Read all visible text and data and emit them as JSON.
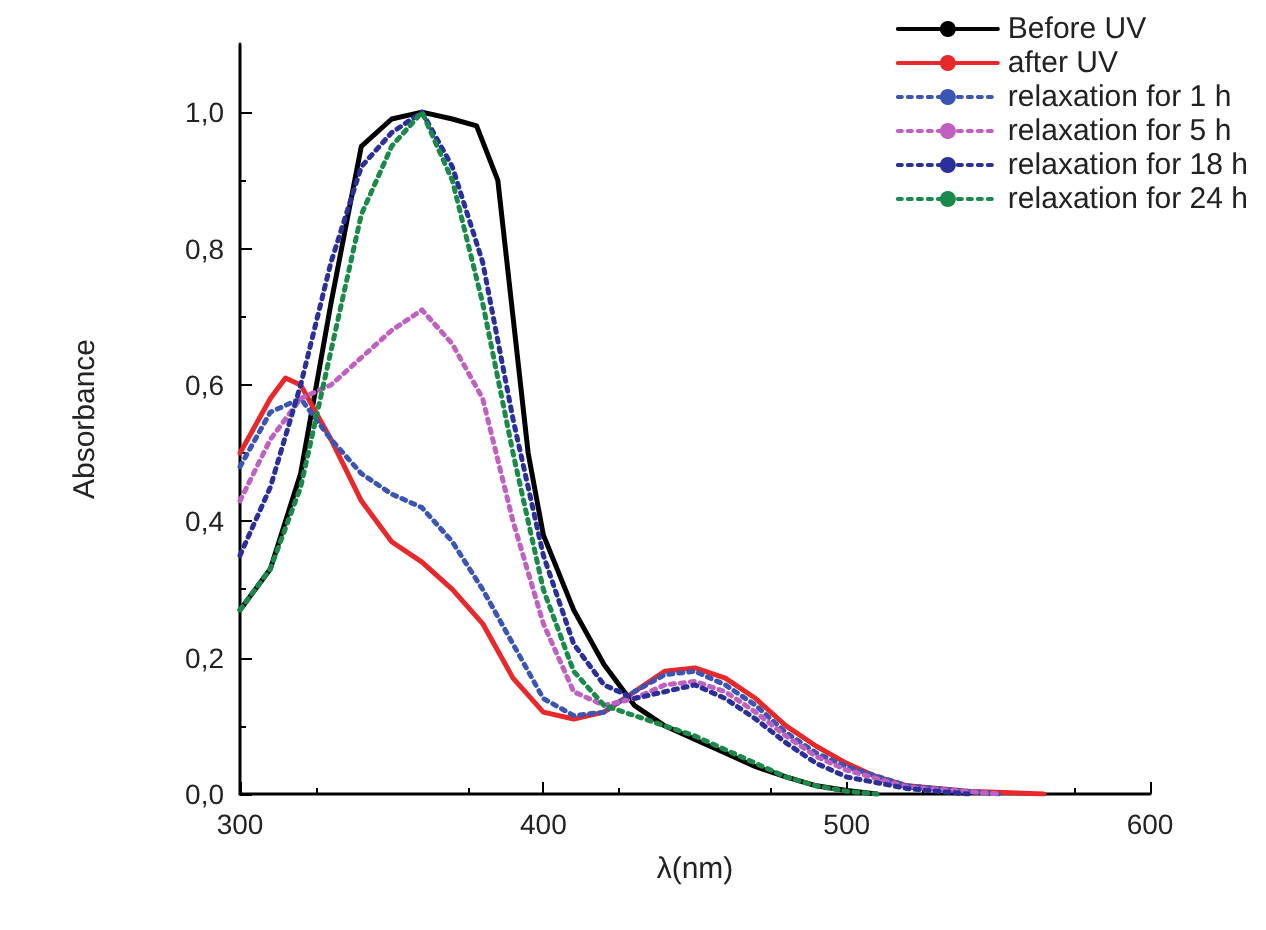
{
  "chart_data": {
    "type": "line",
    "xlabel": "λ(nm)",
    "ylabel": "Absorbance",
    "xlim": [
      300,
      600
    ],
    "xticks": [
      300,
      400,
      500,
      600
    ],
    "ylim": [
      0,
      1.1
    ],
    "yticks": [
      {
        "value": 0,
        "label": "0,0"
      },
      {
        "value": 0.2,
        "label": "0,2"
      },
      {
        "value": 0.4,
        "label": "0,4"
      },
      {
        "value": 0.6,
        "label": "0,6"
      },
      {
        "value": 0.8,
        "label": "0,8"
      },
      {
        "value": 1.0,
        "label": "1,0"
      }
    ],
    "grid": false,
    "legend": "top right",
    "marker": "none",
    "series": [
      {
        "name": "Before UV",
        "color": "#000000",
        "line_style": "solid",
        "x": [
          300,
          310,
          320,
          330,
          340,
          350,
          360,
          370,
          378,
          385,
          390,
          395,
          400,
          410,
          420,
          430,
          440,
          450,
          460,
          470,
          480,
          490,
          500,
          510
        ],
        "values": [
          0.27,
          0.33,
          0.47,
          0.72,
          0.95,
          0.99,
          1.0,
          0.99,
          0.98,
          0.9,
          0.7,
          0.5,
          0.38,
          0.27,
          0.19,
          0.13,
          0.1,
          0.08,
          0.06,
          0.04,
          0.025,
          0.012,
          0.005,
          0
        ]
      },
      {
        "name": "after UV",
        "color": "#e8282b",
        "line_style": "solid",
        "x": [
          300,
          310,
          315,
          320,
          330,
          340,
          350,
          360,
          370,
          380,
          390,
          400,
          410,
          420,
          430,
          440,
          450,
          460,
          470,
          480,
          490,
          500,
          510,
          520,
          540,
          565
        ],
        "values": [
          0.5,
          0.58,
          0.61,
          0.6,
          0.52,
          0.43,
          0.37,
          0.34,
          0.3,
          0.25,
          0.17,
          0.12,
          0.11,
          0.12,
          0.15,
          0.18,
          0.185,
          0.17,
          0.14,
          0.1,
          0.07,
          0.045,
          0.025,
          0.012,
          0.004,
          0
        ]
      },
      {
        "name": "relaxation for 1 h",
        "color": "#3a55b4",
        "line_style": "dotted",
        "x": [
          300,
          310,
          320,
          330,
          340,
          350,
          360,
          370,
          380,
          390,
          400,
          410,
          420,
          430,
          440,
          450,
          460,
          470,
          480,
          490,
          500,
          520,
          550
        ],
        "values": [
          0.48,
          0.56,
          0.58,
          0.52,
          0.47,
          0.44,
          0.42,
          0.37,
          0.3,
          0.22,
          0.14,
          0.115,
          0.12,
          0.15,
          0.175,
          0.18,
          0.16,
          0.13,
          0.09,
          0.06,
          0.04,
          0.012,
          0
        ]
      },
      {
        "name": "relaxation for 5 h",
        "color": "#c060c0",
        "line_style": "dotted",
        "x": [
          300,
          310,
          320,
          330,
          340,
          350,
          360,
          370,
          380,
          390,
          400,
          410,
          420,
          430,
          440,
          450,
          460,
          470,
          480,
          490,
          500,
          520,
          550
        ],
        "values": [
          0.43,
          0.52,
          0.58,
          0.6,
          0.64,
          0.68,
          0.71,
          0.66,
          0.58,
          0.4,
          0.25,
          0.15,
          0.13,
          0.14,
          0.16,
          0.165,
          0.15,
          0.12,
          0.085,
          0.055,
          0.035,
          0.01,
          0
        ]
      },
      {
        "name": "relaxation for 18 h",
        "color": "#2b2f9a",
        "line_style": "dotted",
        "x": [
          300,
          310,
          320,
          330,
          340,
          350,
          360,
          370,
          380,
          390,
          400,
          410,
          420,
          430,
          440,
          450,
          460,
          470,
          480,
          490,
          500,
          520,
          540
        ],
        "values": [
          0.35,
          0.45,
          0.6,
          0.78,
          0.92,
          0.97,
          1.0,
          0.92,
          0.78,
          0.55,
          0.35,
          0.22,
          0.16,
          0.14,
          0.15,
          0.16,
          0.14,
          0.11,
          0.075,
          0.045,
          0.025,
          0.008,
          0
        ]
      },
      {
        "name": "relaxation for 24 h",
        "color": "#1a8a4a",
        "line_style": "dotted",
        "x": [
          300,
          310,
          320,
          330,
          340,
          350,
          360,
          370,
          380,
          390,
          400,
          410,
          420,
          430,
          440,
          450,
          460,
          470,
          480,
          490,
          500,
          510
        ],
        "values": [
          0.27,
          0.33,
          0.45,
          0.65,
          0.85,
          0.95,
          1.0,
          0.9,
          0.72,
          0.5,
          0.3,
          0.18,
          0.13,
          0.115,
          0.1,
          0.085,
          0.065,
          0.045,
          0.025,
          0.012,
          0.004,
          0
        ]
      }
    ]
  }
}
